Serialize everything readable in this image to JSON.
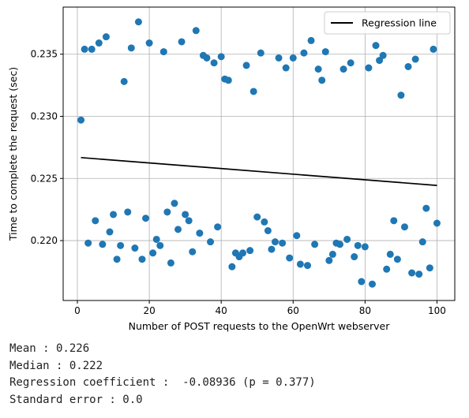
{
  "chart_data": {
    "type": "scatter",
    "xlabel": "Number of POST requests to the OpenWrt webserver",
    "ylabel": "Time to complete the request (sec)",
    "xlim": [
      -3.95,
      104.95
    ],
    "ylim": [
      0.21518,
      0.23879
    ],
    "xticks": [
      0,
      20,
      40,
      60,
      80,
      100
    ],
    "yticks": [
      0.22,
      0.225,
      0.23,
      0.235
    ],
    "xtick_labels": [
      "0",
      "20",
      "40",
      "60",
      "80",
      "100"
    ],
    "ytick_labels": [
      "0.220",
      "0.225",
      "0.230",
      "0.235"
    ],
    "grid": true,
    "legend_position": "top-right",
    "colors": {
      "points": "#1f77b4",
      "regression": "#000000",
      "grid": "#b0b0b0"
    },
    "series": [
      {
        "type": "scatter",
        "x": [
          1,
          2,
          3,
          4,
          5,
          6,
          7,
          8,
          9,
          10,
          11,
          12,
          13,
          14,
          15,
          16,
          17,
          18,
          19,
          20,
          21,
          22,
          23,
          24,
          25,
          26,
          27,
          28,
          29,
          30,
          31,
          32,
          33,
          34,
          35,
          36,
          37,
          38,
          39,
          40,
          41,
          42,
          43,
          44,
          45,
          46,
          47,
          48,
          49,
          50,
          51,
          52,
          53,
          54,
          55,
          56,
          57,
          58,
          59,
          60,
          61,
          62,
          63,
          64,
          65,
          66,
          67,
          68,
          69,
          70,
          71,
          72,
          73,
          74,
          75,
          76,
          77,
          78,
          79,
          80,
          81,
          82,
          83,
          84,
          85,
          86,
          87,
          88,
          89,
          90,
          91,
          92,
          93,
          94,
          95,
          96,
          97,
          98,
          99,
          100
        ],
        "y": [
          0.2297,
          0.2354,
          0.2198,
          0.2354,
          0.2216,
          0.2359,
          0.2197,
          0.2364,
          0.2207,
          0.2221,
          0.2185,
          0.2196,
          0.2328,
          0.2223,
          0.2355,
          0.2194,
          0.2376,
          0.2185,
          0.2218,
          0.2359,
          0.219,
          0.2201,
          0.2196,
          0.2352,
          0.2223,
          0.2182,
          0.223,
          0.2209,
          0.236,
          0.2221,
          0.2216,
          0.2191,
          0.2369,
          0.2206,
          0.2349,
          0.2347,
          0.2199,
          0.2343,
          0.2211,
          0.2348,
          0.233,
          0.2329,
          0.2179,
          0.219,
          0.2187,
          0.219,
          0.2341,
          0.2192,
          0.232,
          0.2219,
          0.2351,
          0.2215,
          0.2208,
          0.2193,
          0.2199,
          0.2347,
          0.2198,
          0.2339,
          0.2186,
          0.2347,
          0.2204,
          0.2181,
          0.2351,
          0.218,
          0.2361,
          0.2197,
          0.2338,
          0.2329,
          0.2352,
          0.2184,
          0.2189,
          0.2198,
          0.2197,
          0.2338,
          0.2201,
          0.2343,
          0.2187,
          0.2196,
          0.2167,
          0.2195,
          0.2339,
          0.2165,
          0.2357,
          0.2345,
          0.2349,
          0.2177,
          0.2189,
          0.2216,
          0.2185,
          0.2317,
          0.2211,
          0.234,
          0.2174,
          0.2346,
          0.2173,
          0.2199,
          0.2226,
          0.2178,
          0.2354,
          0.2214
        ]
      },
      {
        "name": "Regression line",
        "type": "line",
        "x": [
          1,
          100
        ],
        "y": [
          0.22668,
          0.22444
        ]
      }
    ]
  },
  "stats": {
    "mean": "Mean : 0.226",
    "median": "Median : 0.222",
    "regression": "Regression coefficient :  -0.08936 (p = 0.377)",
    "stderr": "Standard error : 0.0"
  }
}
